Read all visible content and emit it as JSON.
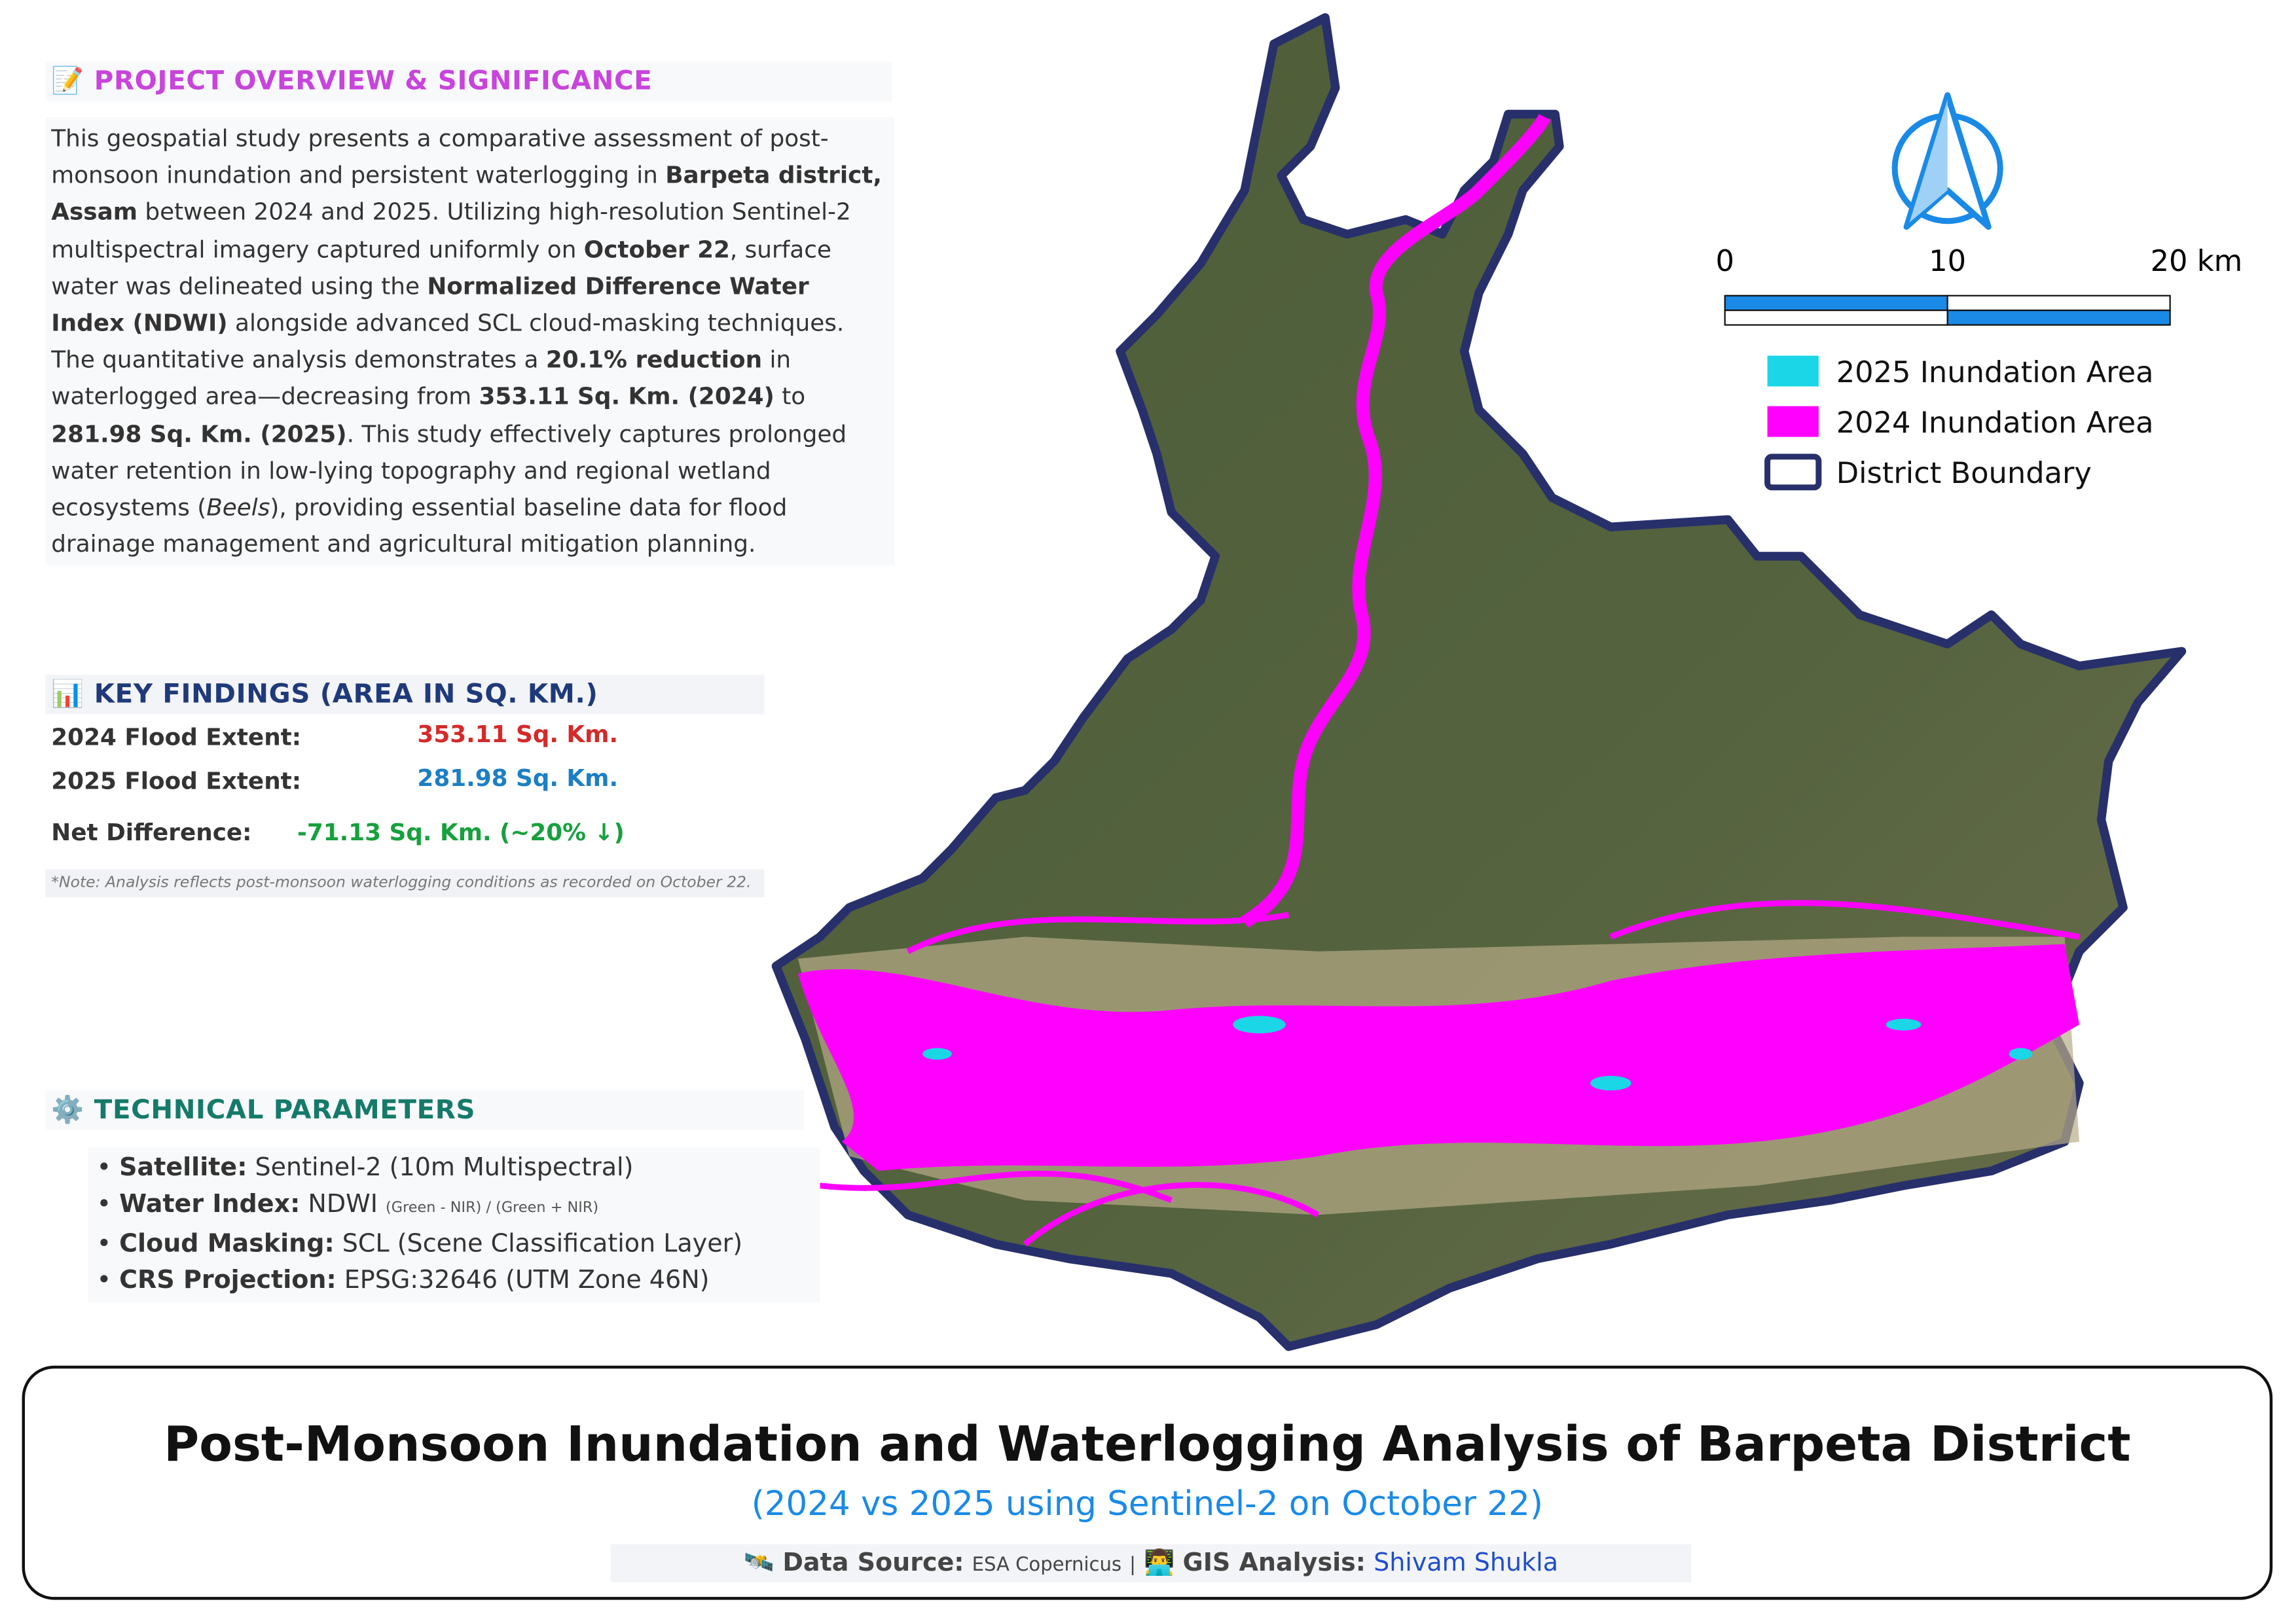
{
  "overview": {
    "icon": "📝",
    "heading": "PROJECT OVERVIEW & SIGNIFICANCE",
    "paragraph": [
      {
        "text": "This geospatial study presents a comparative assessment of post-monsoon inundation and persistent waterlogging in ",
        "style": "normal"
      },
      {
        "text": "Barpeta district, Assam",
        "style": "bold"
      },
      {
        "text": " between 2024 and 2025. Utilizing high-resolution Sentinel-2 multispectral imagery captured uniformly on ",
        "style": "normal"
      },
      {
        "text": "October 22",
        "style": "bold"
      },
      {
        "text": ", surface water was delineated using the ",
        "style": "normal"
      },
      {
        "text": "Normalized Difference Water Index (NDWI)",
        "style": "bold"
      },
      {
        "text": " alongside advanced SCL cloud-masking techniques. The quantitative analysis demonstrates a ",
        "style": "normal"
      },
      {
        "text": "20.1% reduction",
        "style": "bold"
      },
      {
        "text": " in waterlogged area—decreasing from ",
        "style": "normal"
      },
      {
        "text": "353.11 Sq. Km. (2024)",
        "style": "bold"
      },
      {
        "text": " to ",
        "style": "normal"
      },
      {
        "text": "281.98 Sq. Km. (2025)",
        "style": "bold"
      },
      {
        "text": ". This study effectively captures prolonged water retention in low-lying topography and regional wetland ecosystems (",
        "style": "normal"
      },
      {
        "text": "Beels",
        "style": "italic"
      },
      {
        "text": "), providing essential baseline data for flood drainage management and agricultural mitigation planning.",
        "style": "normal"
      }
    ]
  },
  "findings": {
    "icon": "📊",
    "heading": "KEY FINDINGS (AREA IN SQ. KM.)",
    "rows": [
      {
        "label": "2024 Flood Extent:",
        "value": "353.11 Sq. Km.",
        "color": "#d42a2a"
      },
      {
        "label": "2025 Flood Extent:",
        "value": "281.98 Sq. Km.",
        "color": "#1b7fc4"
      },
      {
        "label": "Net Difference:",
        "value": "-71.13 Sq. Km. (~20% ↓)",
        "color": "#17a03e"
      }
    ],
    "note": "*Note: Analysis reflects post-monsoon waterlogging conditions as recorded on October 22."
  },
  "parameters": {
    "icon": "⚙️",
    "heading": "TECHNICAL PARAMETERS",
    "items": [
      {
        "label": "Satellite:",
        "value": "Sentinel-2 (10m Multispectral)"
      },
      {
        "label": "Water Index:",
        "value": "NDWI",
        "detail": "(Green - NIR) / (Green + NIR)"
      },
      {
        "label": "Cloud Masking:",
        "value": "SCL (Scene Classification Layer)"
      },
      {
        "label": "CRS Projection:",
        "value": "EPSG:32646 (UTM Zone 46N)"
      }
    ]
  },
  "scale_bar": {
    "labels": [
      "0",
      "10",
      "20 km"
    ]
  },
  "legend": {
    "items": [
      {
        "label": "2025 Inundation Area",
        "color": "#1ad6e6"
      },
      {
        "label": "2024 Inundation Area",
        "color": "#ff00ff"
      },
      {
        "label": "District Boundary",
        "color": "#27306b"
      }
    ]
  },
  "footer": {
    "title": "Post-Monsoon Inundation and Waterlogging Analysis of Barpeta District",
    "subtitle": "(2024 vs 2025 using Sentinel-2 on October 22)",
    "source_icon": "🛰️",
    "source_label": "Data Source:",
    "source_value": "ESA Copernicus",
    "separator": "|",
    "analyst_icon": "👨‍💻",
    "analyst_label": "GIS Analysis:",
    "analyst_value": "Shivam Shukla"
  }
}
